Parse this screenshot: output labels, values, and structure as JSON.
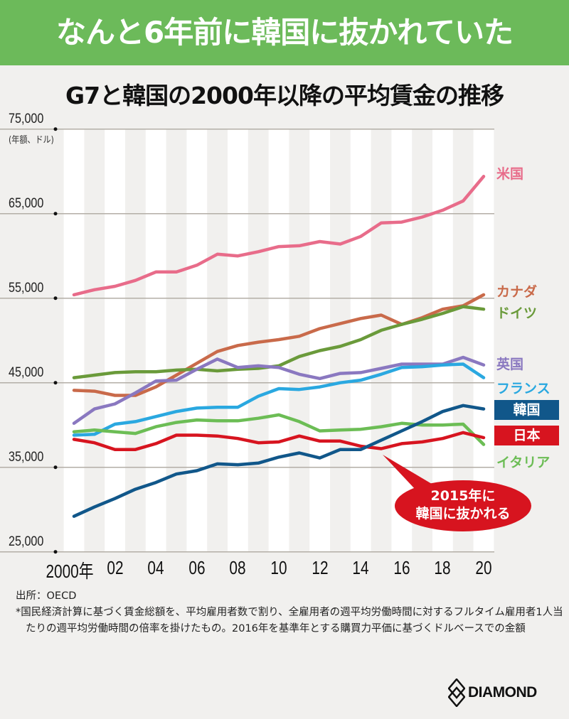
{
  "header": {
    "headline": "なんと6年前に韓国に抜かれていた"
  },
  "chart_data": {
    "type": "line",
    "title": "G7と韓国の2000年以降の平均賃金の推移",
    "ylabel": "(年額、ドル)",
    "xlabel": "",
    "ylim": [
      25000,
      75000
    ],
    "yticks": [
      75000,
      65000,
      55000,
      45000,
      35000,
      25000
    ],
    "ytick_labels": [
      "75,000",
      "65,000",
      "55,000",
      "45,000",
      "35,000",
      "25,000"
    ],
    "x": [
      2000,
      2001,
      2002,
      2003,
      2004,
      2005,
      2006,
      2007,
      2008,
      2009,
      2010,
      2011,
      2012,
      2013,
      2014,
      2015,
      2016,
      2017,
      2018,
      2019,
      2020
    ],
    "xticks": [
      2000,
      2002,
      2004,
      2006,
      2008,
      2010,
      2012,
      2014,
      2016,
      2018,
      2020
    ],
    "xtick_labels": [
      "2000年",
      "02",
      "04",
      "06",
      "08",
      "10",
      "12",
      "14",
      "16",
      "18",
      "20"
    ],
    "grid": "horizontal",
    "legend": "right (line-end labels)",
    "series": [
      {
        "name": "米国",
        "color": "#e86c8a",
        "values": [
          55400,
          56000,
          56400,
          57100,
          58100,
          58100,
          58900,
          60200,
          60000,
          60500,
          61100,
          61200,
          61700,
          61400,
          62300,
          63900,
          64000,
          64600,
          65400,
          66500,
          69400
        ]
      },
      {
        "name": "カナダ",
        "color": "#c96a4a",
        "values": [
          44100,
          44000,
          43500,
          43500,
          44500,
          45900,
          47300,
          48700,
          49400,
          49800,
          50100,
          50500,
          51400,
          52000,
          52600,
          53000,
          51900,
          52700,
          53700,
          54100,
          55400
        ]
      },
      {
        "name": "ドイツ",
        "color": "#6a9a3a",
        "values": [
          45600,
          45900,
          46200,
          46300,
          46300,
          46500,
          46600,
          46400,
          46600,
          46700,
          47000,
          48100,
          48800,
          49300,
          50100,
          51200,
          51900,
          52500,
          53200,
          54000,
          53700
        ]
      },
      {
        "name": "英国",
        "color": "#8a78c0",
        "values": [
          40200,
          41900,
          42500,
          43800,
          45200,
          45300,
          46600,
          47800,
          46800,
          47000,
          46800,
          46000,
          45500,
          46100,
          46200,
          46700,
          47200,
          47200,
          47200,
          48000,
          47100
        ]
      },
      {
        "name": "フランス",
        "color": "#2aa8e0",
        "values": [
          38800,
          38900,
          40100,
          40400,
          41000,
          41600,
          42000,
          42100,
          42100,
          43400,
          44300,
          44200,
          44500,
          45000,
          45300,
          46000,
          46800,
          46900,
          47100,
          47200,
          45600
        ]
      },
      {
        "name": "韓国",
        "color": "#11578a",
        "values": [
          29200,
          30300,
          31300,
          32400,
          33200,
          34200,
          34600,
          35400,
          35300,
          35500,
          36200,
          36700,
          36100,
          37100,
          37100,
          38200,
          39300,
          40400,
          41600,
          42300,
          41900
        ]
      },
      {
        "name": "日本",
        "color": "#d7141f",
        "values": [
          38300,
          37900,
          37100,
          37100,
          37800,
          38800,
          38800,
          38700,
          38400,
          37900,
          38000,
          38700,
          38100,
          38100,
          37500,
          37200,
          37800,
          38000,
          38400,
          39100,
          38500
        ]
      },
      {
        "name": "イタリア",
        "color": "#6cbd55",
        "values": [
          39200,
          39400,
          39200,
          39000,
          39800,
          40300,
          40600,
          40500,
          40500,
          40800,
          41200,
          40400,
          39300,
          39400,
          39500,
          39800,
          40200,
          40000,
          40000,
          40100,
          37700
        ]
      }
    ],
    "annotations": [
      {
        "text_line1": "2015年に",
        "text_line2": "韓国に抜かれる",
        "points_to_year": 2015
      }
    ]
  },
  "footer": {
    "source": "出所：OECD",
    "note": "*国民経済計算に基づく賃金総額を、平均雇用者数で割り、全雇用者の週平均労働時間に対するフルタイム雇用者1人当たりの週平均労働時間の倍率を掛けたもの。2016年を基準年とする購買力平価に基づくドルベースでの金額",
    "logo": "DIAMOND"
  }
}
